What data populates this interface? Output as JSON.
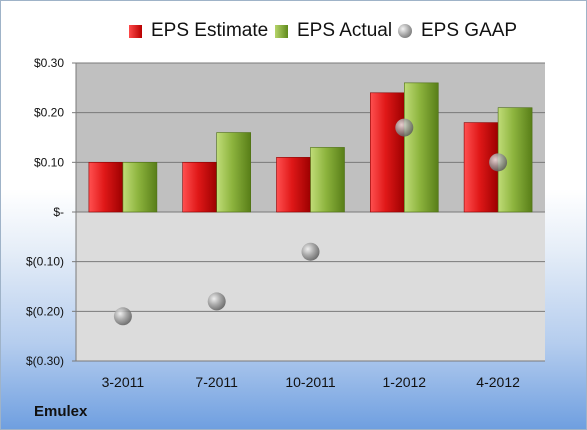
{
  "legend": {
    "estimate": "EPS Estimate",
    "actual": "EPS Actual",
    "gaap": "EPS GAAP"
  },
  "company": "Emulex",
  "colors": {
    "estimate": "#d42020",
    "actual": "#7fa83a",
    "gaap": "#8c8c8c",
    "plot_upper": "#c0c0c0",
    "plot_lower": "#dcdcdc"
  },
  "chart_data": {
    "type": "bar",
    "categories": [
      "3-2011",
      "7-2011",
      "10-2011",
      "1-2012",
      "4-2012"
    ],
    "series": [
      {
        "name": "EPS Estimate",
        "type": "bar",
        "values": [
          0.1,
          0.1,
          0.11,
          0.24,
          0.18
        ]
      },
      {
        "name": "EPS Actual",
        "type": "bar",
        "values": [
          0.1,
          0.16,
          0.13,
          0.26,
          0.21
        ]
      },
      {
        "name": "EPS GAAP",
        "type": "scatter",
        "values": [
          -0.21,
          -0.18,
          -0.08,
          0.17,
          0.1
        ]
      }
    ],
    "ylim": [
      -0.3,
      0.3
    ],
    "yticks": [
      0.3,
      0.2,
      0.1,
      0,
      -0.1,
      -0.2,
      -0.3
    ],
    "ytick_labels": [
      "$0.30",
      "$0.20",
      "$0.10",
      "$-",
      "$(0.10)",
      "$(0.20)",
      "$(0.30)"
    ],
    "grid": true,
    "legend_position": "top"
  }
}
